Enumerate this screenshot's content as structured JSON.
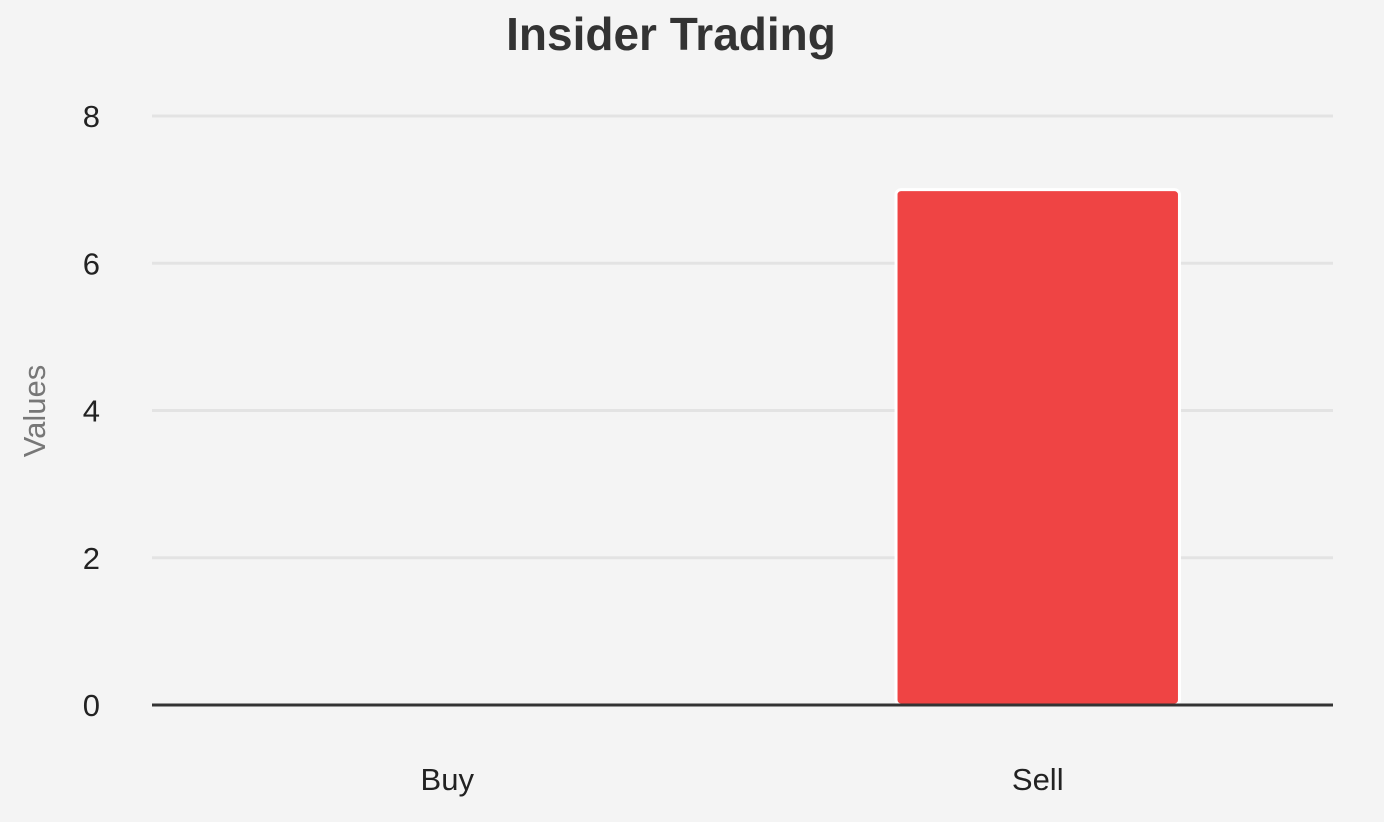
{
  "chart_data": {
    "type": "bar",
    "title": "Insider Trading",
    "xlabel": "",
    "ylabel": "Values",
    "categories": [
      "Buy",
      "Sell"
    ],
    "values": [
      0,
      7
    ],
    "ylim": [
      0,
      8
    ],
    "yticks": [
      0,
      2,
      4,
      6,
      8
    ],
    "grid": true,
    "bar_colors": [
      "#ef4444",
      "#ef4444"
    ]
  }
}
